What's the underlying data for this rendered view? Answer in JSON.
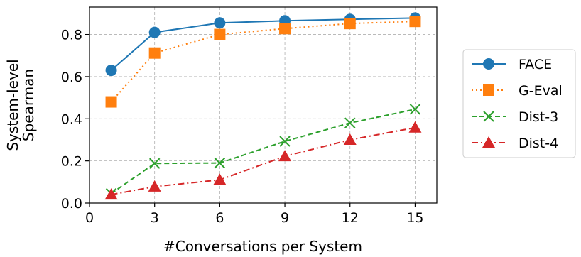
{
  "chart_data": {
    "type": "line",
    "xlabel": "#Conversations per System",
    "ylabel_lines": [
      "System-level",
      "Spearman"
    ],
    "xlim": [
      0,
      16
    ],
    "ylim": [
      0,
      0.93
    ],
    "xticks": [
      0,
      3,
      6,
      9,
      12,
      15
    ],
    "xtick_labels": [
      "0",
      "3",
      "6",
      "9",
      "12",
      "15"
    ],
    "yticks": [
      0.0,
      0.2,
      0.4,
      0.6,
      0.8
    ],
    "ytick_labels": [
      "0.0",
      "0.2",
      "0.4",
      "0.6",
      "0.8"
    ],
    "grid": true,
    "legend_position": "right, outside plot",
    "x": [
      1,
      3,
      6,
      9,
      12,
      15
    ],
    "series": [
      {
        "name": "FACE",
        "values": [
          0.63,
          0.81,
          0.855,
          0.865,
          0.872,
          0.878
        ],
        "color": "#1f77b4",
        "marker": "circle",
        "linestyle": "solid"
      },
      {
        "name": "G-Eval",
        "values": [
          0.48,
          0.712,
          0.8,
          0.828,
          0.852,
          0.862
        ],
        "color": "#ff7f0e",
        "marker": "square",
        "linestyle": "dotted"
      },
      {
        "name": "Dist-3",
        "values": [
          0.045,
          0.188,
          0.19,
          0.293,
          0.38,
          0.445
        ],
        "color": "#2ca02c",
        "marker": "x",
        "linestyle": "dashed"
      },
      {
        "name": "Dist-4",
        "values": [
          0.04,
          0.078,
          0.11,
          0.222,
          0.3,
          0.358
        ],
        "color": "#d62728",
        "marker": "triangle",
        "linestyle": "dashdot"
      }
    ]
  }
}
